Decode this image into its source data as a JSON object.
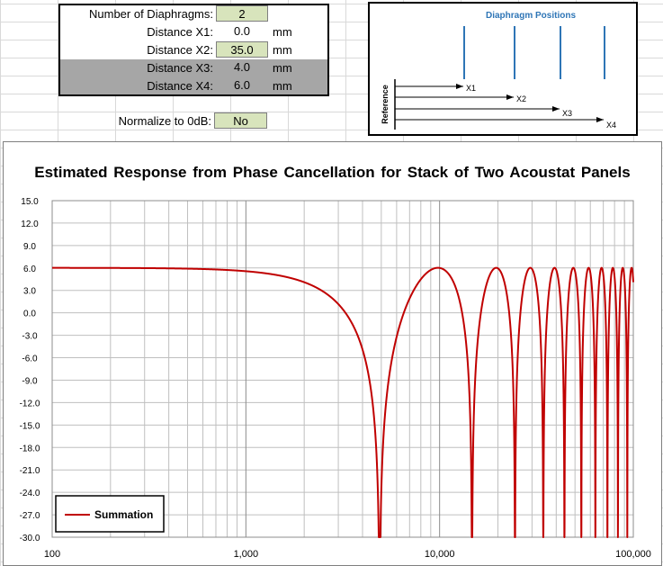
{
  "parameters": {
    "num_diaphragms": {
      "label": "Number of Diaphragms:",
      "value": "2"
    },
    "rows": [
      {
        "label": "Distance X1:",
        "value": "0.0",
        "unit": "mm"
      },
      {
        "label": "Distance X2:",
        "value": "35.0",
        "unit": "mm"
      },
      {
        "label": "Distance X3:",
        "value": "4.0",
        "unit": "mm"
      },
      {
        "label": "Distance X4:",
        "value": "6.0",
        "unit": "mm"
      }
    ],
    "normalize": {
      "label": "Normalize to 0dB:",
      "value": "No"
    }
  },
  "diagram": {
    "title": "Diaphragm Positions",
    "reference_label": "Reference",
    "arrow_labels": [
      "X1",
      "X2",
      "X3",
      "X4"
    ],
    "color": "#2e75b6"
  },
  "chart_data": {
    "type": "line",
    "title": "Estimated Response from Phase Cancellation for Stack of Two Acoustat Panels",
    "xlabel": "",
    "ylabel": "",
    "x_scale": "log",
    "xlim": [
      100,
      100000
    ],
    "ylim": [
      -30,
      15
    ],
    "x_tick_labels": [
      "100",
      "1,000",
      "10,000",
      "100,000"
    ],
    "y_tick_labels": [
      "15.0",
      "12.0",
      "9.0",
      "6.0",
      "3.0",
      "0.0",
      "-3.0",
      "-6.0",
      "-9.0",
      "-12.0",
      "-15.0",
      "-18.0",
      "-21.0",
      "-24.0",
      "-27.0",
      "-30.0"
    ],
    "grid": true,
    "legend_position": "bottom-left",
    "series": [
      {
        "name": "Summation",
        "color": "#c00000",
        "model": {
          "diaphragm_spacing_mm": 35.0,
          "speed_of_sound_m_s": 343,
          "floor_db": -30
        },
        "x": [
          100,
          500,
          1000,
          2000,
          3000,
          4000,
          4900,
          6000,
          8000,
          9800,
          12000,
          14700,
          19600,
          24500,
          29400,
          34300,
          39200,
          44100,
          49000,
          53900,
          58800,
          63700,
          68600,
          73500,
          78400,
          83300,
          88200,
          93100,
          98000,
          100000
        ],
        "values": [
          6.0,
          5.9,
          5.6,
          4.5,
          2.3,
          -2.4,
          -30.0,
          -2.0,
          4.0,
          6.0,
          3.4,
          -30.0,
          6.0,
          -25.0,
          6.0,
          -30.0,
          6.0,
          -21.0,
          6.0,
          -27.0,
          6.0,
          -17.0,
          6.0,
          -25.0,
          6.0,
          -22.0,
          6.0,
          -19.0,
          6.0,
          5.2
        ]
      }
    ]
  }
}
